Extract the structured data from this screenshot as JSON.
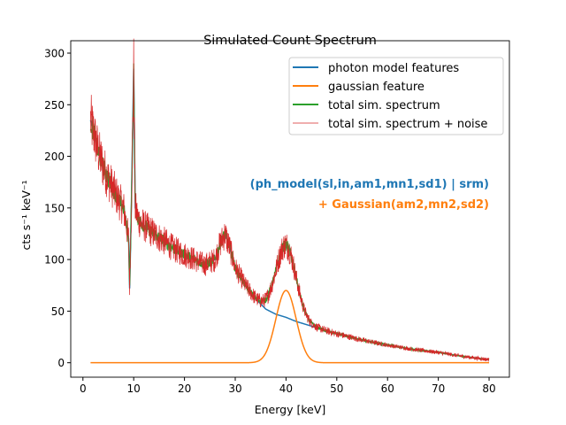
{
  "chart_data": {
    "type": "line",
    "title": "Simulated Count Spectrum",
    "xlabel": "Energy [keV]",
    "ylabel": "cts s⁻¹ keV⁻¹",
    "xlim": [
      -2.4,
      84
    ],
    "ylim": [
      -14,
      312
    ],
    "xticks": [
      "0",
      "10",
      "20",
      "30",
      "40",
      "50",
      "60",
      "70",
      "80"
    ],
    "yticks": [
      "0",
      "50",
      "100",
      "150",
      "200",
      "250",
      "300"
    ],
    "grid": false,
    "legend_position": "top-right",
    "series": [
      {
        "name": "photon model features",
        "color": "#1f77b4",
        "x": [
          1.5,
          2,
          3,
          4,
          5,
          6,
          7,
          8,
          9,
          9.2,
          9.5,
          10,
          10.3,
          11,
          12,
          14,
          16,
          18,
          20,
          22,
          24,
          26,
          27,
          28,
          29,
          30,
          32,
          34,
          36,
          38,
          40,
          42,
          44,
          46,
          48,
          50,
          55,
          60,
          65,
          70,
          75,
          80
        ],
        "y": [
          235,
          225,
          205,
          190,
          178,
          168,
          158,
          150,
          120,
          72,
          140,
          285,
          150,
          138,
          133,
          125,
          118,
          110,
          105,
          100,
          95,
          100,
          115,
          125,
          110,
          92,
          75,
          62,
          52,
          47,
          44,
          40,
          37,
          34,
          31,
          28,
          22,
          17,
          13,
          10,
          6,
          3
        ]
      },
      {
        "name": "gaussian feature",
        "color": "#ff7f0e",
        "amplitude": 70,
        "mean": 40,
        "sigma": 2,
        "x_range": [
          1.5,
          80
        ]
      },
      {
        "name": "total sim. spectrum",
        "color": "#2ca02c"
      },
      {
        "name": "total sim. spectrum + noise",
        "color": "#d62728"
      }
    ],
    "annotations": [
      {
        "text": "(ph_model(sl,in,am1,mn1,sd1) | srm)",
        "color": "#1f77b4"
      },
      {
        "text": "+ Gaussian(am2,mn2,sd2)",
        "color": "#ff7f0e"
      }
    ]
  }
}
